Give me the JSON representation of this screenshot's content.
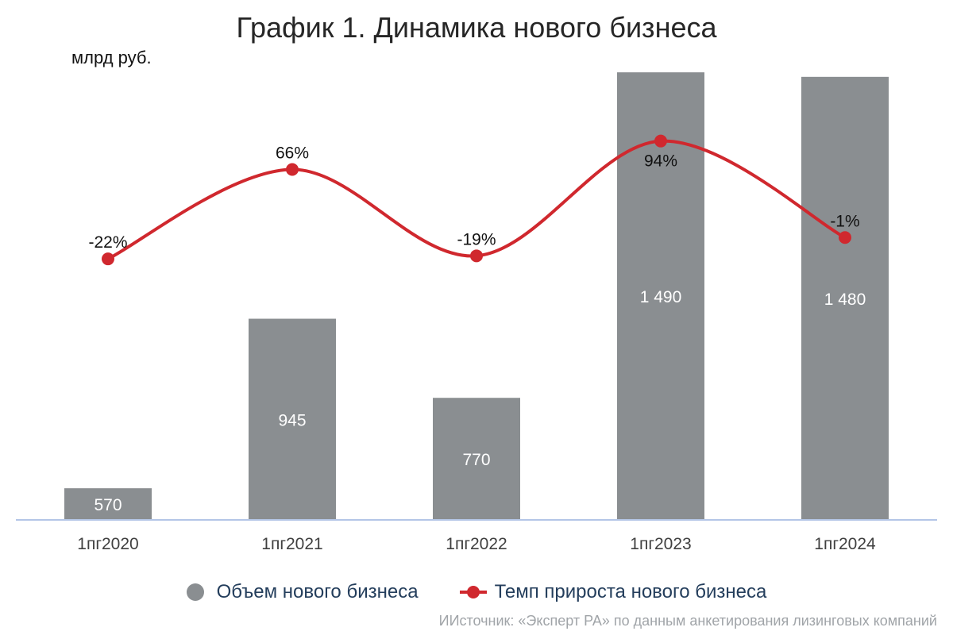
{
  "header": {
    "title": "График 1. Динамика нового бизнеса",
    "unit": "млрд руб."
  },
  "chart_data": {
    "type": "bar",
    "categories": [
      "1пг2020",
      "1пг2021",
      "1пг2022",
      "1пг2023",
      "1пг2024"
    ],
    "series": [
      {
        "name": "Объем нового бизнеса",
        "type": "bar",
        "axis": "left",
        "values": [
          570,
          945,
          770,
          1490,
          1480
        ],
        "labels": [
          "570",
          "945",
          "770",
          "1 490",
          "1 480"
        ]
      },
      {
        "name": "Темп прироста нового бизнеса",
        "type": "line",
        "axis": "right",
        "values": [
          -22,
          66,
          -19,
          94,
          -1
        ],
        "labels": [
          "-22%",
          "66%",
          "-19%",
          "94%",
          "-1%"
        ]
      }
    ],
    "ylim_left": [
      500,
      1650
    ],
    "ylim_right": [
      -25,
      100
    ],
    "grid": false,
    "legend_position": "bottom"
  },
  "colors": {
    "bar": "#8a8e91",
    "line": "#d0282e",
    "axis": "#b4c6e7",
    "bar_label": "#ffffff",
    "tick_label": "#404040"
  },
  "legend": [
    {
      "label": "Объем нового бизнеса",
      "icon": "grey-circle-marker"
    },
    {
      "label": "Темп прироста нового бизнеса",
      "icon": "red-line-dot-marker"
    }
  ],
  "source": "ИИсточник: «Эксперт РА» по данным анкетирования лизинговых компаний"
}
